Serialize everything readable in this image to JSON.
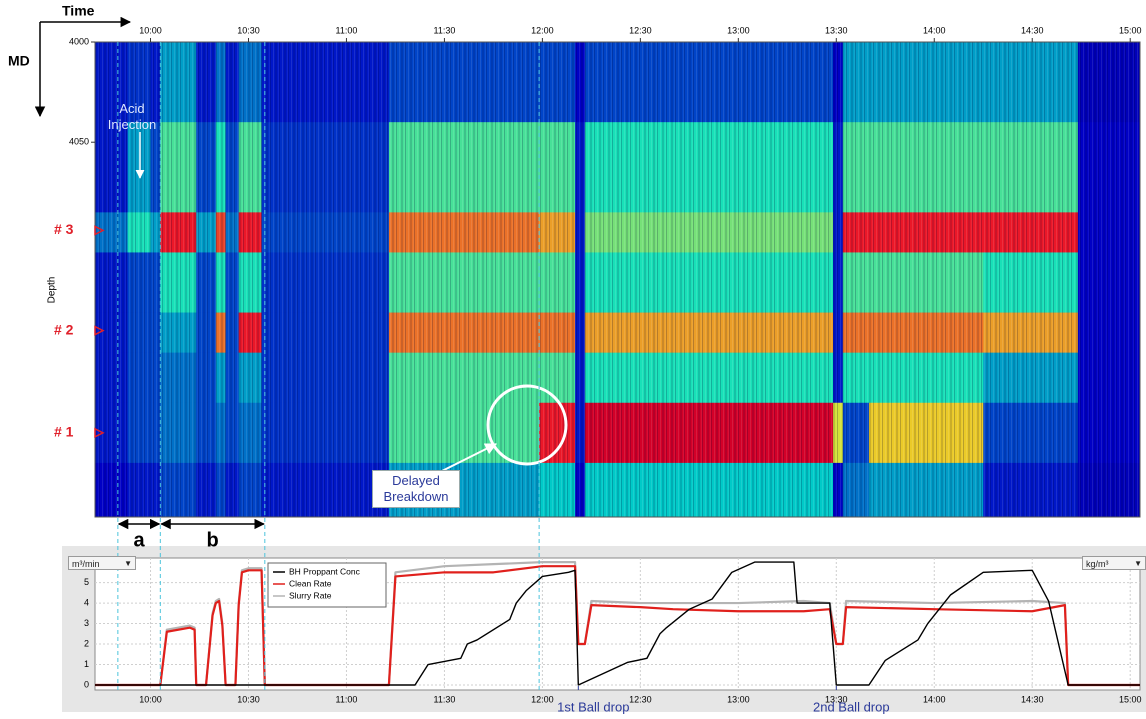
{
  "chart_data": [
    {
      "type": "heatmap",
      "x_label": "Time",
      "y_label": "MD",
      "axis_title": "Depth",
      "xlim": [
        583,
        903
      ],
      "xticks": [
        {
          "value": 600,
          "label": "10:00"
        },
        {
          "value": 630,
          "label": "10:30"
        },
        {
          "value": 660,
          "label": "11:00"
        },
        {
          "value": 690,
          "label": "11:30"
        },
        {
          "value": 720,
          "label": "12:00"
        },
        {
          "value": 750,
          "label": "12:30"
        },
        {
          "value": 780,
          "label": "13:00"
        },
        {
          "value": 810,
          "label": "13:30"
        },
        {
          "value": 840,
          "label": "14:00"
        },
        {
          "value": 870,
          "label": "14:30"
        },
        {
          "value": 900,
          "label": "15:00"
        }
      ],
      "ylim": [
        4000,
        4237
      ],
      "yticks": [
        4000,
        4050
      ],
      "x_edges": [
        583,
        593,
        600,
        603,
        614,
        620,
        623,
        627,
        634,
        673,
        719,
        730,
        733,
        809,
        812,
        820,
        855,
        884,
        903
      ],
      "y_edges": [
        4000,
        4040,
        4085,
        4105,
        4135,
        4155,
        4180,
        4210,
        4237
      ],
      "values": [
        [
          0.15,
          0.18,
          0.15,
          0.3,
          0.15,
          0.25,
          0.15,
          0.25,
          0.15,
          0.2,
          0.2,
          0.12,
          0.2,
          0.12,
          0.3,
          0.3,
          0.3,
          0.1
        ],
        [
          0.15,
          0.3,
          0.2,
          0.45,
          0.2,
          0.4,
          0.2,
          0.45,
          0.18,
          0.45,
          0.45,
          0.15,
          0.4,
          0.15,
          0.45,
          0.45,
          0.45,
          0.12
        ],
        [
          0.25,
          0.4,
          0.3,
          0.85,
          0.3,
          0.8,
          0.25,
          0.85,
          0.2,
          0.75,
          0.7,
          0.15,
          0.5,
          0.15,
          0.85,
          0.85,
          0.85,
          0.12
        ],
        [
          0.15,
          0.2,
          0.2,
          0.4,
          0.2,
          0.4,
          0.2,
          0.4,
          0.18,
          0.45,
          0.45,
          0.15,
          0.4,
          0.15,
          0.45,
          0.45,
          0.4,
          0.12
        ],
        [
          0.15,
          0.2,
          0.2,
          0.3,
          0.2,
          0.75,
          0.2,
          0.85,
          0.18,
          0.75,
          0.75,
          0.15,
          0.7,
          0.15,
          0.75,
          0.75,
          0.7,
          0.12
        ],
        [
          0.15,
          0.2,
          0.2,
          0.25,
          0.2,
          0.3,
          0.2,
          0.3,
          0.18,
          0.45,
          0.45,
          0.15,
          0.4,
          0.15,
          0.4,
          0.4,
          0.3,
          0.12
        ],
        [
          0.15,
          0.2,
          0.2,
          0.25,
          0.2,
          0.25,
          0.2,
          0.25,
          0.18,
          0.45,
          0.85,
          0.15,
          0.9,
          0.6,
          0.2,
          0.65,
          0.2,
          0.12
        ],
        [
          0.12,
          0.15,
          0.15,
          0.2,
          0.15,
          0.2,
          0.15,
          0.2,
          0.15,
          0.3,
          0.35,
          0.12,
          0.35,
          0.12,
          0.25,
          0.3,
          0.15,
          0.1
        ]
      ],
      "stages": [
        {
          "label": "# 3",
          "depth": 4094
        },
        {
          "label": "# 2",
          "depth": 4144
        },
        {
          "label": "# 1",
          "depth": 4195
        }
      ],
      "events": [
        590,
        603,
        635,
        719
      ],
      "spans": [
        {
          "label": "a",
          "start": 590,
          "end": 603
        },
        {
          "label": "b",
          "start": 603,
          "end": 635
        }
      ],
      "annotations": [
        "Acid Injection",
        "Delayed Breakdown"
      ]
    },
    {
      "type": "line",
      "y_unit": "m³/min",
      "y2_unit": "kg/m³",
      "xlim": [
        583,
        903
      ],
      "xticks": [
        {
          "value": 600,
          "label": "10:00"
        },
        {
          "value": 630,
          "label": "10:30"
        },
        {
          "value": 660,
          "label": "11:00"
        },
        {
          "value": 690,
          "label": "11:30"
        },
        {
          "value": 720,
          "label": "12:00"
        },
        {
          "value": 750,
          "label": "12:30"
        },
        {
          "value": 780,
          "label": "13:00"
        },
        {
          "value": 810,
          "label": "13:30"
        },
        {
          "value": 840,
          "label": "14:00"
        },
        {
          "value": 870,
          "label": "14:30"
        },
        {
          "value": 900,
          "label": "15:00"
        }
      ],
      "ylim": [
        0,
        6.2
      ],
      "yticks": [
        0,
        1,
        2,
        3,
        4,
        5
      ],
      "y2lim": [
        0,
        6.2
      ],
      "grid": true,
      "legend": "top-left",
      "series": [
        {
          "name": "BH Proppant Conc",
          "color": "#000000",
          "axis": "y2",
          "x": [
            583,
            681,
            683,
            685,
            695,
            697,
            700,
            710,
            712,
            715,
            720,
            728,
            730,
            731,
            746,
            752,
            756,
            758,
            765,
            772,
            778,
            785,
            797,
            798,
            808,
            810,
            820,
            825,
            835,
            838,
            845,
            855,
            870,
            875,
            881,
            903
          ],
          "values": [
            0,
            0,
            0.5,
            1.0,
            1.3,
            2.0,
            2.2,
            3.2,
            4.0,
            4.6,
            5.3,
            5.5,
            5.6,
            0,
            1.1,
            1.3,
            2.5,
            2.8,
            3.7,
            4.2,
            5.5,
            6.0,
            6.0,
            4.0,
            4.0,
            0,
            0,
            1.2,
            2.2,
            3.0,
            4.4,
            5.5,
            5.6,
            4.1,
            0,
            0
          ]
        },
        {
          "name": "Clean Rate",
          "color": "#e0201c",
          "x": [
            583,
            603,
            605,
            612,
            613.5,
            614,
            617,
            619,
            620,
            621,
            622,
            623,
            626,
            627,
            628,
            630,
            634,
            635,
            673,
            675,
            690,
            705,
            720,
            730,
            731,
            733,
            735,
            750,
            760,
            780,
            800,
            808,
            810,
            812,
            813,
            840,
            870,
            880,
            881,
            903
          ],
          "values": [
            0,
            0,
            2.6,
            2.8,
            2.7,
            0,
            0,
            3.4,
            4.0,
            4.1,
            2.9,
            0,
            0,
            3.9,
            5.5,
            5.6,
            5.6,
            0,
            0,
            5.3,
            5.5,
            5.5,
            5.8,
            5.8,
            2.0,
            2.0,
            3.9,
            3.8,
            3.7,
            3.6,
            3.6,
            3.7,
            2.0,
            2.0,
            3.8,
            3.7,
            3.6,
            3.9,
            0,
            0
          ]
        },
        {
          "name": "Slurry Rate",
          "color": "#b4b4b4",
          "x": [
            583,
            603,
            605,
            612,
            613.5,
            614,
            617,
            619,
            620,
            621,
            622,
            623,
            626,
            627,
            628,
            630,
            634,
            635,
            673,
            675,
            690,
            705,
            720,
            730,
            731,
            733,
            735,
            750,
            760,
            780,
            800,
            808,
            810,
            812,
            813,
            840,
            870,
            880,
            881,
            903
          ],
          "values": [
            0,
            0,
            2.7,
            2.9,
            2.8,
            0,
            0,
            3.5,
            4.1,
            4.2,
            3.0,
            0,
            0,
            4.0,
            5.6,
            5.7,
            5.7,
            0,
            0,
            5.5,
            5.8,
            5.9,
            6.0,
            6.0,
            2.0,
            2.0,
            4.1,
            4.0,
            4.0,
            4.0,
            4.1,
            4.0,
            2.0,
            2.0,
            4.1,
            4.0,
            4.1,
            4.0,
            0,
            0
          ]
        }
      ],
      "ball_drops": [
        {
          "label": "1st Ball drop",
          "time": 731
        },
        {
          "label": "2nd Ball drop",
          "time": 810
        }
      ]
    }
  ]
}
